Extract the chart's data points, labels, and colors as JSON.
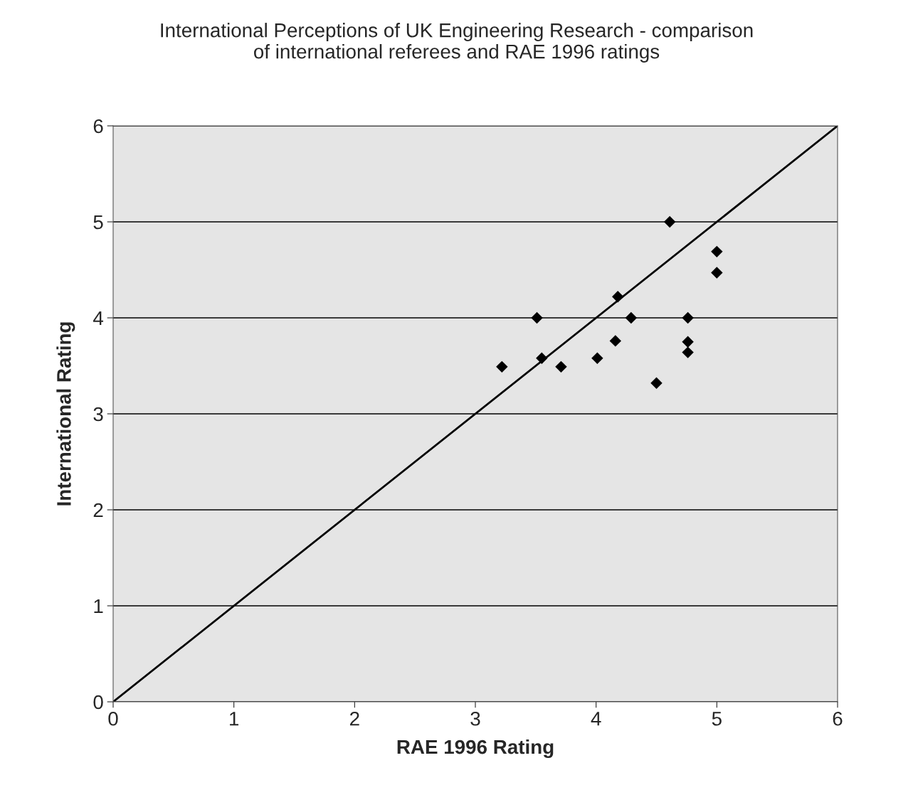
{
  "chart_data": {
    "type": "scatter",
    "title": "International Perceptions of UK Engineering Research - comparison\nof international referees and RAE 1996 ratings",
    "xlabel": "RAE 1996 Rating",
    "ylabel": "International Rating",
    "xlim": [
      0,
      6
    ],
    "ylim": [
      0,
      6
    ],
    "xticks": [
      0,
      1,
      2,
      3,
      4,
      5,
      6
    ],
    "yticks": [
      0,
      1,
      2,
      3,
      4,
      5,
      6
    ],
    "grid": "y",
    "marker": "diamond",
    "series": [
      {
        "color": "#000000",
        "x": [
          3.22,
          3.51,
          3.55,
          3.71,
          4.01,
          4.16,
          4.18,
          4.29,
          4.5,
          4.61,
          4.76,
          4.76,
          4.76,
          5.0,
          5.0
        ],
        "values": [
          3.49,
          4.0,
          3.58,
          3.49,
          3.58,
          3.76,
          4.22,
          4.0,
          3.32,
          5.0,
          4.0,
          3.75,
          3.64,
          4.69,
          4.47
        ]
      },
      {
        "type": "line",
        "color": "#000000",
        "marker": "none",
        "line_style": "solid",
        "x": [
          0,
          6
        ],
        "values": [
          0,
          6
        ]
      }
    ]
  }
}
